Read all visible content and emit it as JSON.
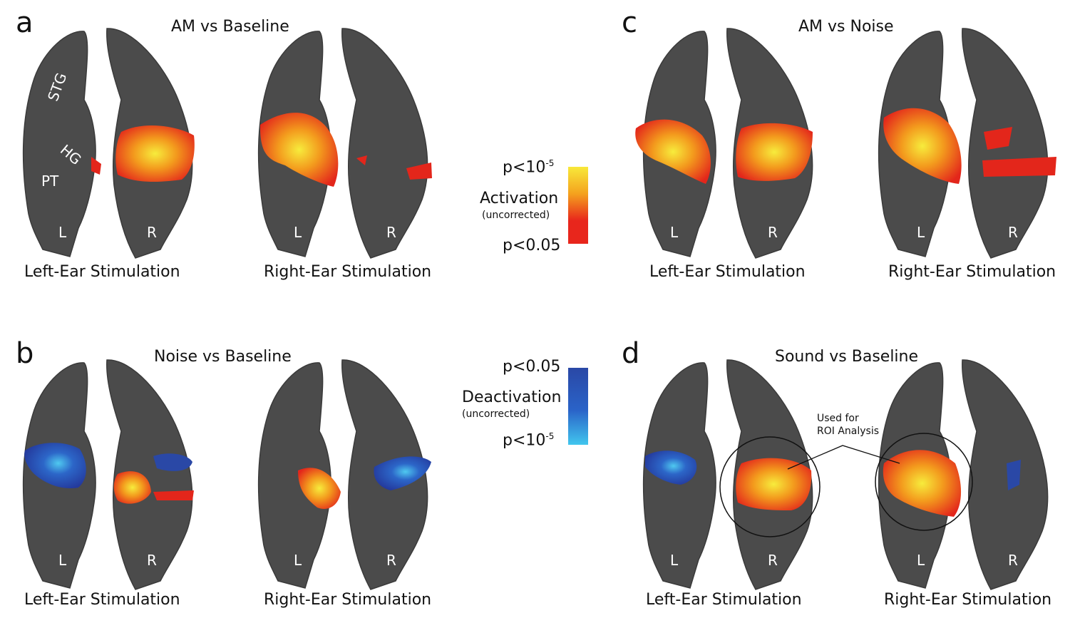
{
  "panels": {
    "a": {
      "letter": "a",
      "title": "AM vs Baseline",
      "captions": [
        "Left-Ear Stimulation",
        "Right-Ear Stimulation"
      ],
      "anatomy": [
        "STG",
        "HG",
        "PT"
      ]
    },
    "b": {
      "letter": "b",
      "title": "Noise vs Baseline",
      "captions": [
        "Left-Ear Stimulation",
        "Right-Ear Stimulation"
      ]
    },
    "c": {
      "letter": "c",
      "title": "AM vs Noise",
      "captions": [
        "Left-Ear Stimulation",
        "Right-Ear Stimulation"
      ]
    },
    "d": {
      "letter": "d",
      "title": "Sound vs Baseline",
      "captions": [
        "Left-Ear Stimulation",
        "Right-Ear Stimulation"
      ],
      "roi_note": [
        "Used for",
        "ROI Analysis"
      ]
    }
  },
  "hemispheres": {
    "left": "L",
    "right": "R"
  },
  "legend": {
    "activation": {
      "label": "Activation",
      "sub": "(uncorrected)",
      "top_base": "p<10",
      "top_exp": "-5",
      "bottom": "p<0.05",
      "colors": [
        "#f8e93a",
        "#f4a21e",
        "#e8261c"
      ]
    },
    "deactivation": {
      "label": "Deactivation",
      "sub": "(uncorrected)",
      "top": "p<0.05",
      "bottom_base": "p<10",
      "bottom_exp": "-5",
      "colors": [
        "#2a48a6",
        "#2a63c8",
        "#41c6ee"
      ]
    }
  },
  "colors": {
    "brain": "#4b4b4b",
    "brain_edge": "#3a3a3a"
  }
}
